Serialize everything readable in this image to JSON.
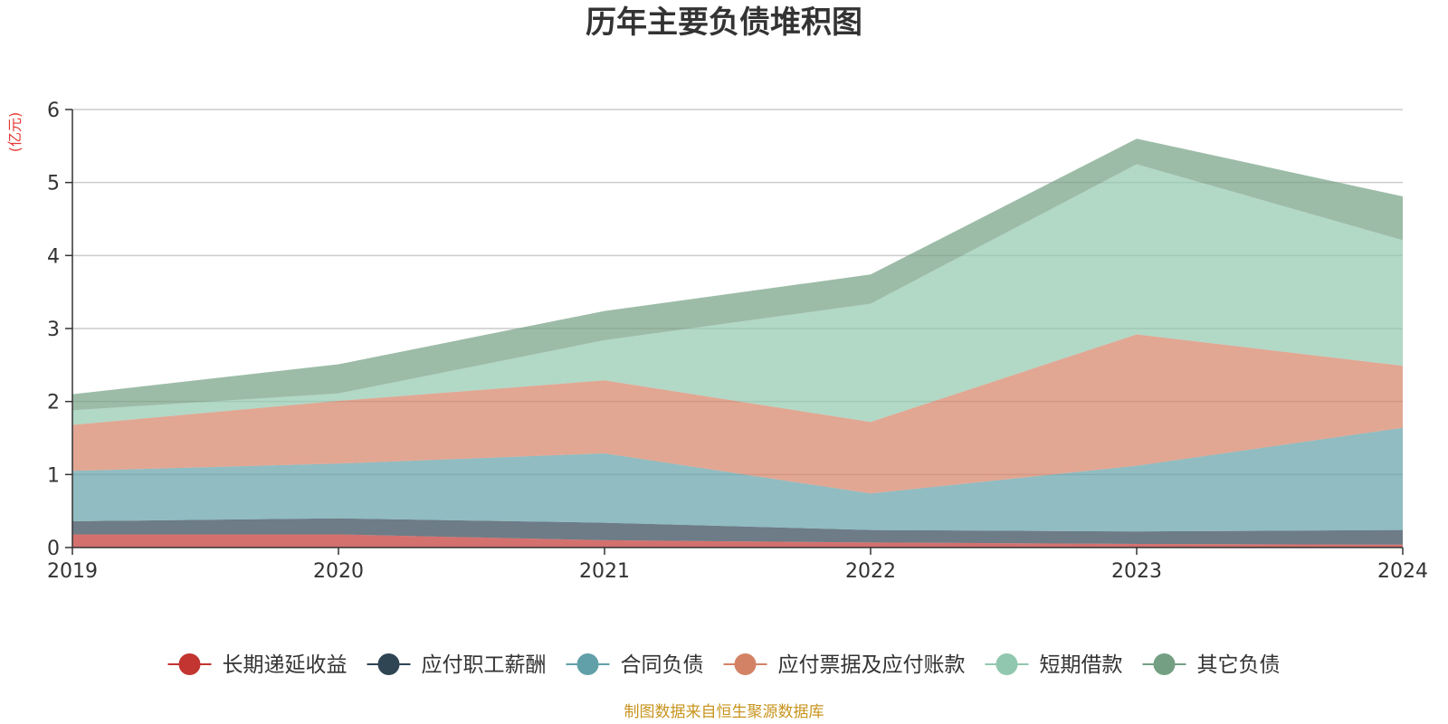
{
  "chart_data": {
    "type": "area",
    "stacked": true,
    "title": "历年主要负债堆积图",
    "unit_label": "(亿元)",
    "x": [
      "2019",
      "2020",
      "2021",
      "2022",
      "2023",
      "2024"
    ],
    "ylim": [
      0,
      6
    ],
    "yticks": [
      "0",
      "1",
      "2",
      "3",
      "4",
      "5",
      "6"
    ],
    "grid": true,
    "legend_position": "bottom",
    "series": [
      {
        "name": "长期递延收益",
        "color": "#c23531",
        "values": [
          0.18,
          0.18,
          0.1,
          0.07,
          0.05,
          0.04
        ]
      },
      {
        "name": "应付职工薪酬",
        "color": "#2f4554",
        "values": [
          0.18,
          0.22,
          0.24,
          0.17,
          0.17,
          0.2
        ]
      },
      {
        "name": "合同负债",
        "color": "#61a0a8",
        "values": [
          0.69,
          0.75,
          0.95,
          0.5,
          0.9,
          1.4
        ]
      },
      {
        "name": "应付票据及应付账款",
        "color": "#d48265",
        "values": [
          0.63,
          0.86,
          1.0,
          0.98,
          1.8,
          0.85
        ]
      },
      {
        "name": "短期借款",
        "color": "#91c7ae",
        "values": [
          0.2,
          0.1,
          0.55,
          1.62,
          2.33,
          1.72
        ]
      },
      {
        "name": "其它负债",
        "color": "#749f83",
        "values": [
          0.22,
          0.4,
          0.4,
          0.4,
          0.35,
          0.6
        ]
      }
    ]
  },
  "source_note": "制图数据来自恒生聚源数据库"
}
